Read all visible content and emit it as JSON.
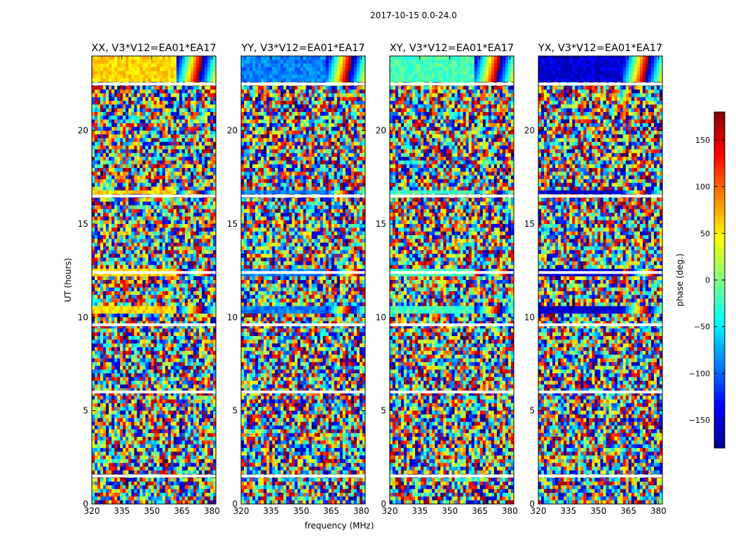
{
  "chart_data": {
    "type": "heatmap",
    "suptitle": "2017-10-15 0.0-24.0",
    "xlabel": "frequency (MHz)",
    "ylabel": "UT (hours)",
    "xlim": [
      320,
      382
    ],
    "ylim": [
      0,
      24
    ],
    "xticks": [
      "320",
      "335",
      "350",
      "365",
      "380"
    ],
    "xtick_values": [
      320,
      335,
      350,
      365,
      380
    ],
    "yticks": [
      "0",
      "5",
      "10",
      "15",
      "20"
    ],
    "ytick_values": [
      0,
      5,
      10,
      15,
      20
    ],
    "colorbar": {
      "label": "phase (deg.)",
      "range": [
        -180,
        180
      ],
      "ticks": [
        "150",
        "100",
        "50",
        "0",
        "−50",
        "−100",
        "−150"
      ],
      "tick_values": [
        150,
        100,
        50,
        0,
        -50,
        -100,
        -150
      ],
      "colormap": "jet"
    },
    "panels": [
      {
        "title": "XX, V3*V12=EA01*EA17",
        "calibrator_phase_deg": 60
      },
      {
        "title": "YY, V3*V12=EA01*EA17",
        "calibrator_phase_deg": -90
      },
      {
        "title": "XY, V3*V12=EA01*EA17",
        "calibrator_phase_deg": -20
      },
      {
        "title": "YX, V3*V12=EA01*EA17",
        "calibrator_phase_deg": -150
      }
    ],
    "flagged_ut_hours": [
      1.5,
      6.0,
      9.6,
      12.4,
      16.5,
      22.5
    ],
    "calibrator_scans_ut_hours": [
      [
        10.1,
        10.5
      ],
      [
        12.2,
        12.6
      ],
      [
        16.6,
        16.8
      ],
      [
        22.6,
        24.0
      ]
    ]
  }
}
